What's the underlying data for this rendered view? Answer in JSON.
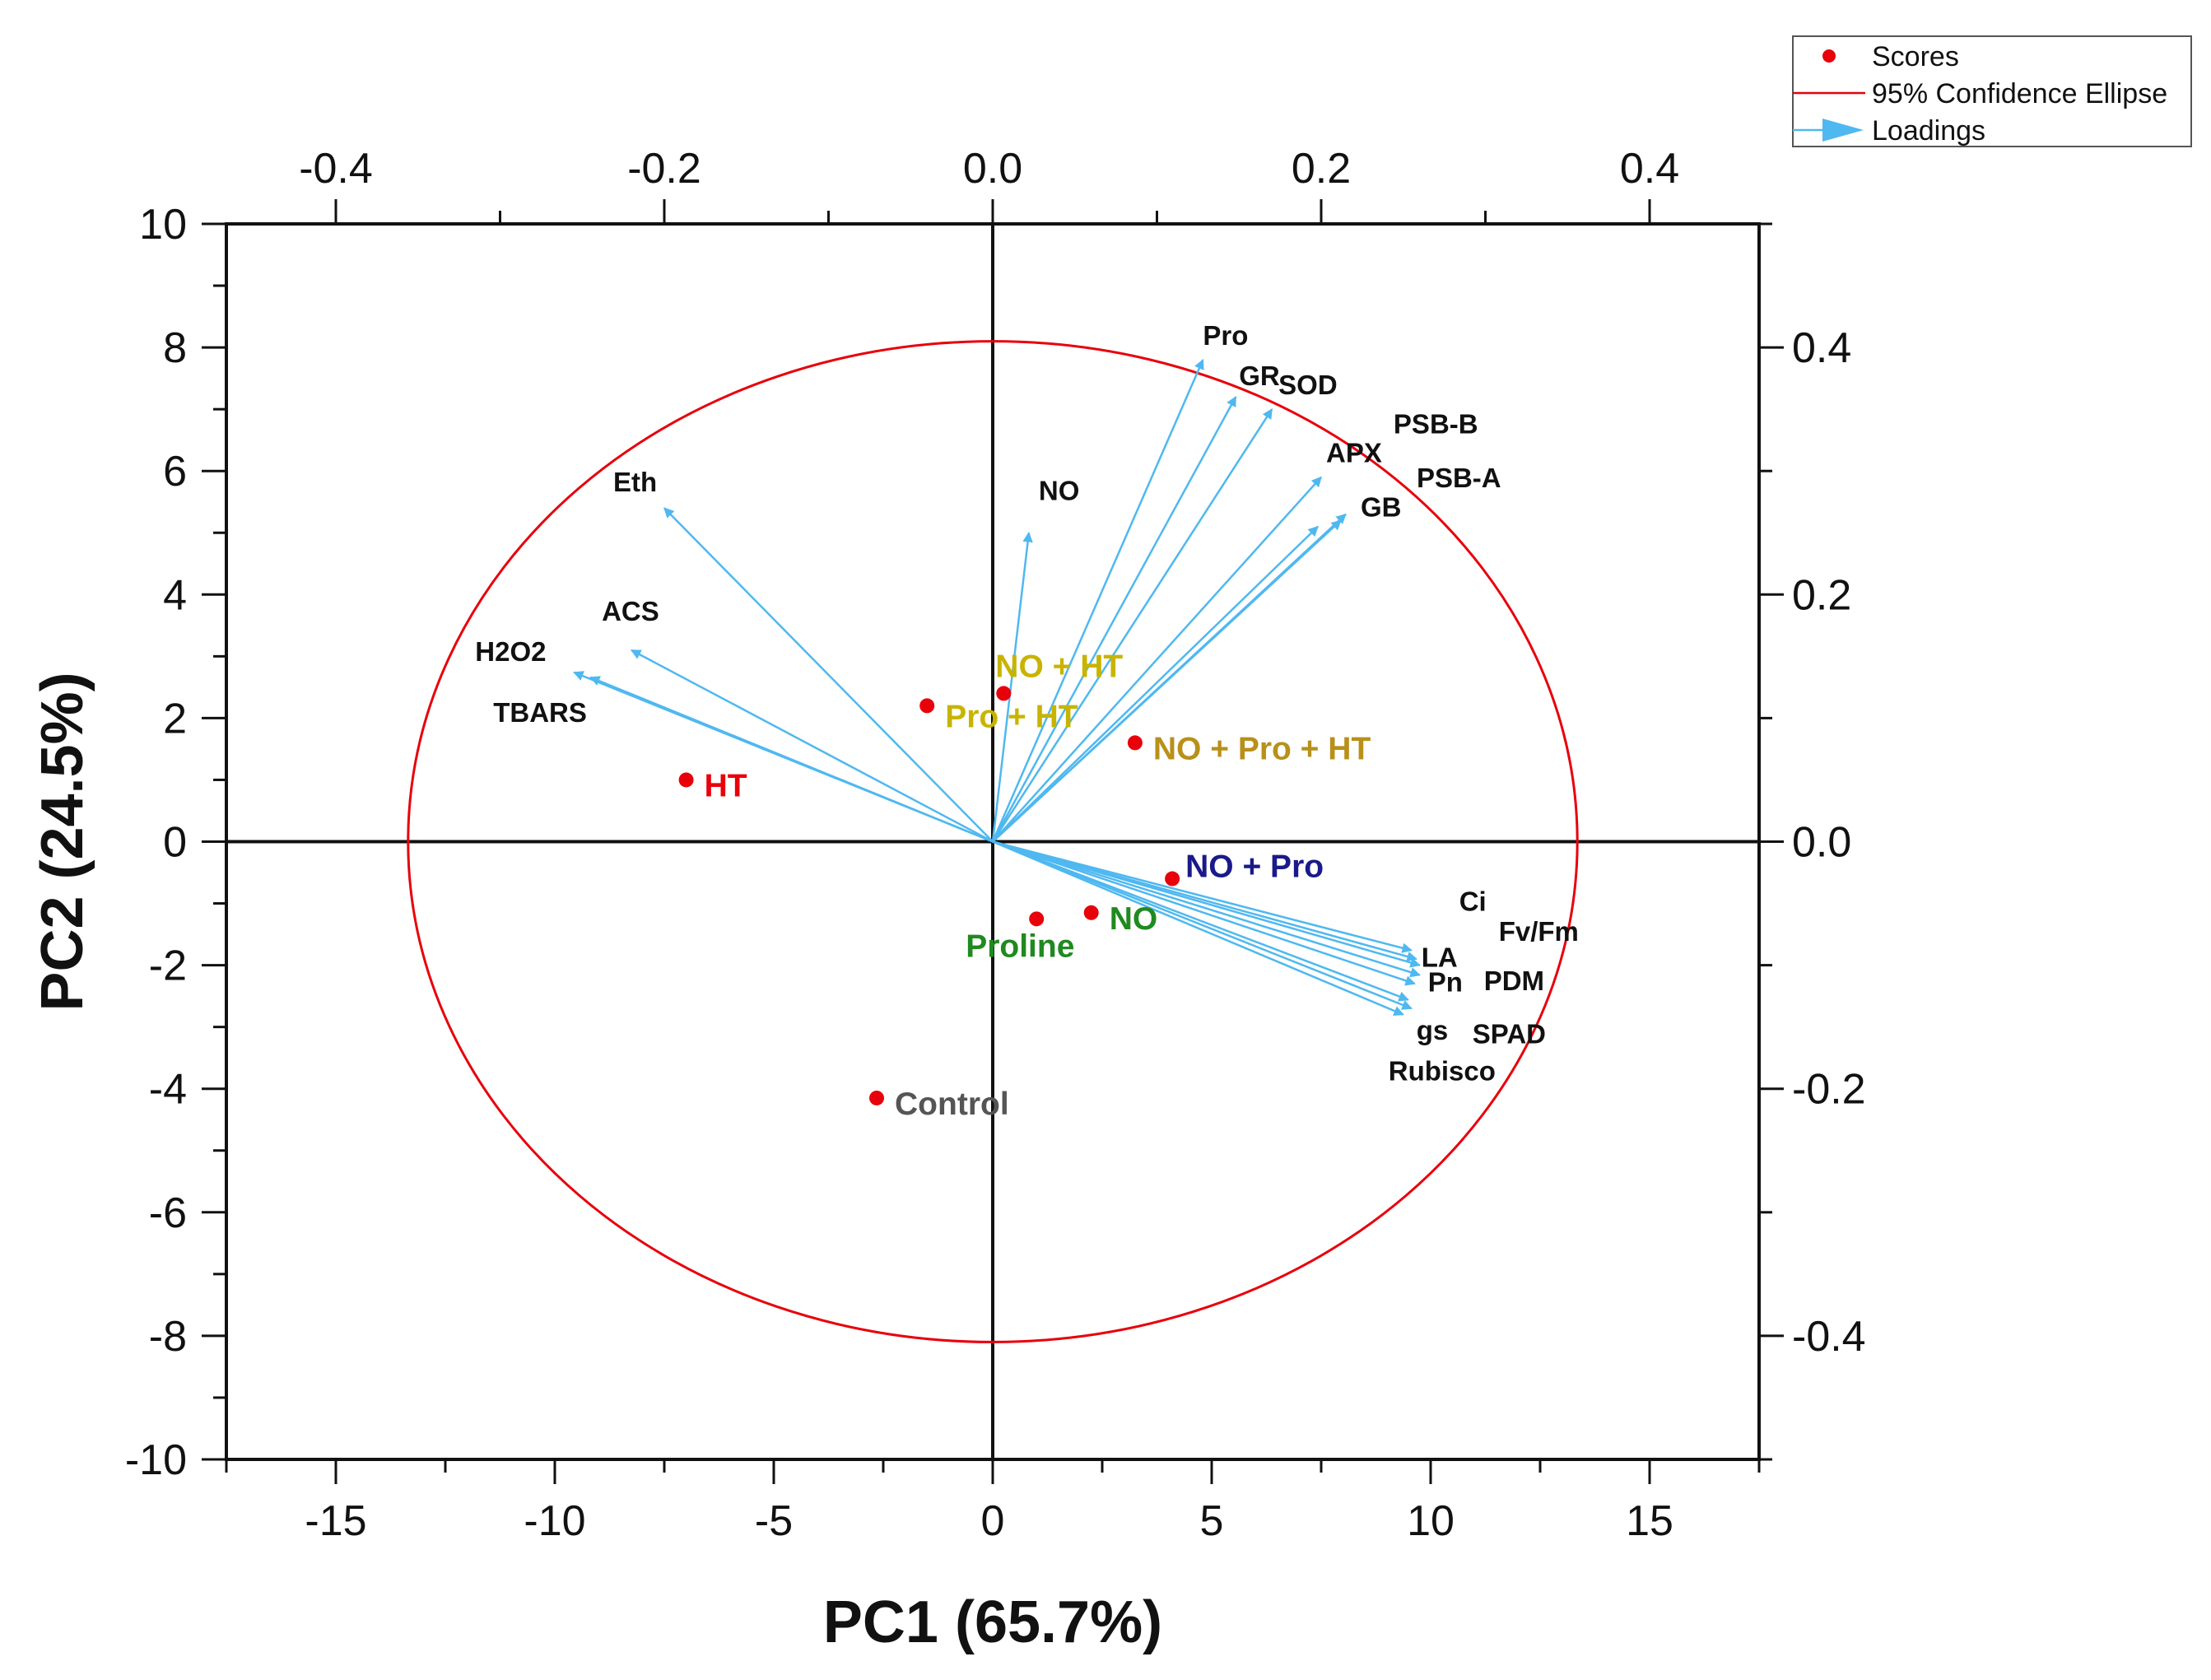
{
  "chart_data": {
    "type": "scatter",
    "subtype": "pca-biplot",
    "title": "",
    "xlabel": "PC1 (65.7%)",
    "ylabel": "PC2 (24.5%)",
    "xlim": [
      -17.5,
      17.5
    ],
    "ylim": [
      -10,
      10
    ],
    "x_ticks": [
      -15,
      -10,
      -5,
      0,
      5,
      10,
      15
    ],
    "y_ticks": [
      -10,
      -8,
      -6,
      -4,
      -2,
      0,
      2,
      4,
      6,
      8,
      10
    ],
    "x_tick_labels": [
      "-15",
      "-10",
      "-5",
      "0",
      "5",
      "10",
      "15"
    ],
    "y_tick_labels": [
      "-10",
      "-8",
      "-6",
      "-4",
      "-2",
      "0",
      "2",
      "4",
      "6",
      "8",
      "10"
    ],
    "secondary_x_ticks": [
      -0.4,
      -0.2,
      0.0,
      0.2,
      0.4
    ],
    "secondary_x_tick_labels": [
      "-0.4",
      "-0.2",
      "0.0",
      "0.2",
      "0.4"
    ],
    "secondary_y_ticks": [
      -0.4,
      -0.2,
      0.0,
      0.2,
      0.4
    ],
    "secondary_y_tick_labels": [
      "-0.4",
      "-0.2",
      "0.0",
      "0.2",
      "0.4"
    ],
    "grid": false,
    "legend_position": "top-right, outside plot",
    "legend": [
      {
        "label": "Scores",
        "symbol": "dot",
        "color": "#e8000b"
      },
      {
        "label": "95% Confidence Ellipse",
        "symbol": "line",
        "color": "#e8000b"
      },
      {
        "label": "Loadings",
        "symbol": "arrow",
        "color": "#4fb8f0"
      }
    ],
    "ellipse": {
      "center": [
        0,
        0
      ],
      "semi_axes": [
        13.35,
        8.1
      ],
      "color": "#e8000b"
    },
    "scores": [
      {
        "label": "HT",
        "x": -7.0,
        "y": 1.0,
        "label_color": "#e8000b"
      },
      {
        "label": "Pro + HT",
        "x": -1.5,
        "y": 2.2,
        "label_color": "#c8b400"
      },
      {
        "label": "NO + HT",
        "x": 0.25,
        "y": 2.4,
        "label_color": "#c8b400"
      },
      {
        "label": "NO + Pro + HT",
        "x": 3.25,
        "y": 1.6,
        "label_color": "#b8901a"
      },
      {
        "label": "NO + Pro",
        "x": 4.1,
        "y": -0.6,
        "label_color": "#1a1a8a"
      },
      {
        "label": "NO",
        "x": 2.25,
        "y": -1.15,
        "label_color": "#1f8a1f"
      },
      {
        "label": "Proline",
        "x": 1.0,
        "y": -1.25,
        "label_color": "#1f8a1f"
      },
      {
        "label": "Control",
        "x": -2.65,
        "y": -4.15,
        "label_color": "#555555"
      }
    ],
    "loadings": [
      {
        "label": "Eth",
        "x": -0.2,
        "y": 0.27
      },
      {
        "label": "ACS",
        "x": -0.22,
        "y": 0.155
      },
      {
        "label": "H2O2",
        "x": -0.255,
        "y": 0.137
      },
      {
        "label": "TBARS",
        "x": -0.245,
        "y": 0.133
      },
      {
        "label": "NO",
        "x": 0.022,
        "y": 0.25
      },
      {
        "label": "Pro",
        "x": 0.128,
        "y": 0.39
      },
      {
        "label": "GR",
        "x": 0.148,
        "y": 0.36
      },
      {
        "label": "SOD",
        "x": 0.17,
        "y": 0.35
      },
      {
        "label": "APX",
        "x": 0.2,
        "y": 0.295
      },
      {
        "label": "PSB-B",
        "x": 0.215,
        "y": 0.265
      },
      {
        "label": "PSB-A",
        "x": 0.212,
        "y": 0.26
      },
      {
        "label": "GB",
        "x": 0.198,
        "y": 0.255
      },
      {
        "label": "Ci",
        "x": 0.255,
        "y": -0.088
      },
      {
        "label": "Fv/Fm",
        "x": 0.258,
        "y": -0.095
      },
      {
        "label": "LA",
        "x": 0.26,
        "y": -0.1
      },
      {
        "label": "Pn",
        "x": 0.26,
        "y": -0.108
      },
      {
        "label": "PDM",
        "x": 0.257,
        "y": -0.115
      },
      {
        "label": "gs",
        "x": 0.255,
        "y": -0.135
      },
      {
        "label": "SPAD",
        "x": 0.25,
        "y": -0.14
      },
      {
        "label": "Rubisco",
        "x": 0.253,
        "y": -0.128
      }
    ],
    "loading_color": "#4fb8f0"
  }
}
